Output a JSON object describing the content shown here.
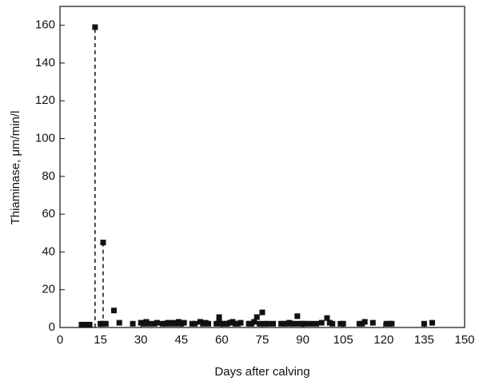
{
  "chart_data": {
    "type": "scatter",
    "x_label": "Days after calving",
    "y_label": "Thiaminase, μm/min/l",
    "xlim": [
      0,
      150
    ],
    "xticks": [
      0,
      15,
      30,
      45,
      60,
      75,
      90,
      105,
      120,
      135,
      150
    ],
    "ylim": [
      0,
      170
    ],
    "yticks": [
      0,
      20,
      40,
      60,
      80,
      100,
      120,
      140,
      160
    ],
    "series": [
      {
        "type": "scatter",
        "color": "#111",
        "x": [
          8,
          9,
          10,
          11,
          13,
          15,
          16,
          16,
          17,
          20,
          22,
          27,
          30,
          31,
          32,
          33,
          35,
          36,
          38,
          39,
          40,
          41,
          42,
          43,
          44,
          45,
          46,
          49,
          50,
          52,
          53,
          54,
          55,
          58,
          59,
          59,
          60,
          61,
          62,
          63,
          64,
          65,
          66,
          67,
          70,
          71,
          72,
          73,
          74,
          75,
          76,
          77,
          79,
          82,
          83,
          84,
          85,
          86,
          87,
          88,
          89,
          90,
          91,
          93,
          95,
          97,
          99,
          100,
          101,
          104,
          105,
          111,
          112,
          113,
          116,
          121,
          122,
          123,
          135,
          138
        ],
        "values": [
          1.5,
          1.5,
          1.5,
          1.5,
          159,
          2,
          45,
          2,
          2,
          9,
          2.5,
          2,
          2.5,
          2,
          3,
          2,
          2,
          2.5,
          2,
          2,
          2.5,
          2,
          2.5,
          2,
          3,
          2,
          2.5,
          2,
          2,
          3,
          2,
          2.5,
          2,
          2,
          5.5,
          3,
          2,
          2,
          2,
          2.5,
          3,
          2,
          2,
          2.5,
          2,
          2,
          3,
          5.5,
          2,
          8,
          2,
          2,
          2,
          2,
          2,
          2,
          2.5,
          2,
          2,
          6,
          2,
          2,
          2,
          2,
          2,
          2.5,
          5,
          2.5,
          2,
          2,
          2,
          2,
          2,
          3,
          2.5,
          2,
          2,
          2,
          2,
          2.5
        ]
      },
      {
        "type": "line",
        "color": "#111",
        "dashed": true,
        "x": [
          13,
          13,
          14,
          16,
          16
        ],
        "values": [
          0,
          159,
          null,
          45,
          0
        ]
      }
    ]
  }
}
